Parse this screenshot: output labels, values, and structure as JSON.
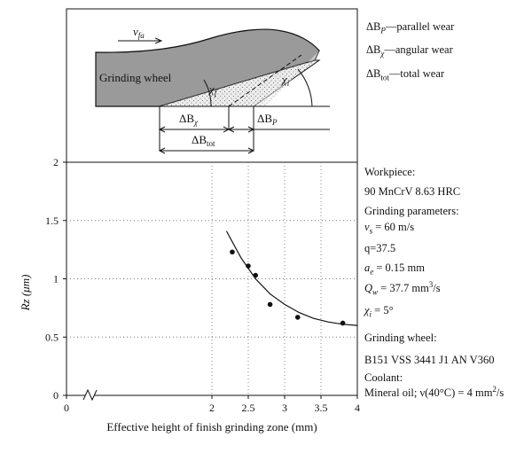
{
  "legend": {
    "parallel": {
      "sym": "ΔB",
      "sub": "P",
      "text": "—parallel wear"
    },
    "angular": {
      "sym": "ΔB",
      "sub": "χ",
      "text": "—angular wear"
    },
    "total": {
      "sym": "ΔB",
      "sub": "tot",
      "text": "—total wear"
    }
  },
  "diagram": {
    "vfa": "v",
    "vfa_sub": "fa",
    "wheel": "Grinding wheel",
    "chi_f": "χ",
    "chi_f_sub": "f",
    "chi_i": "χ",
    "chi_i_sub": "i",
    "db_chi": "ΔB",
    "db_chi_sub": "χ",
    "db_p": "ΔB",
    "db_p_sub": "P",
    "db_tot": "ΔB",
    "db_tot_sub": "tot"
  },
  "params": {
    "workpiece_title": "Workpiece:",
    "workpiece": "90 MnCrV 8.63 HRC",
    "grinding_title": "Grinding parameters:",
    "vs_sym": "v",
    "vs_sub": "s",
    "vs_val": " = 60 m/s",
    "q": "q=37.5",
    "ae_sym": "a",
    "ae_sub": "e",
    "ae_val": " = 0.15  mm",
    "qw_sym": "Q",
    "qw_sub": "w",
    "qw_val": " = 37.7 mm",
    "qw_sup": "3",
    "qw_unit": "/s",
    "chi_sym": "χ",
    "chi_sub": "i",
    "chi_val": " = 5°",
    "wheel_title": "Grinding wheel:",
    "wheel": "B151 VSS 3441 J1 AN V360",
    "coolant_title": "Coolant:",
    "coolant": "Mineral oil; ν(40°C) = 4 mm",
    "coolant_sup": "2",
    "coolant_unit": "/s"
  },
  "chart_data": {
    "type": "scatter",
    "xlabel": "Effective height of finish grinding zone (mm)",
    "ylabel": "Rz (μm)",
    "xlim": [
      0,
      4
    ],
    "ylim": [
      0,
      2
    ],
    "xticks": [
      "0",
      "2",
      "2.5",
      "3",
      "3.5",
      "4"
    ],
    "xtick_values": [
      0,
      2,
      2.5,
      3,
      3.5,
      4
    ],
    "yticks": [
      "0",
      "0.5",
      "1",
      "1.5",
      "2"
    ],
    "ytick_values": [
      0,
      0.5,
      1,
      1.5,
      2
    ],
    "axis_break": true,
    "grid": "dotted",
    "points": [
      {
        "x": 2.28,
        "y": 1.23
      },
      {
        "x": 2.5,
        "y": 1.11
      },
      {
        "x": 2.6,
        "y": 1.03
      },
      {
        "x": 2.8,
        "y": 0.78
      },
      {
        "x": 3.18,
        "y": 0.67
      },
      {
        "x": 3.8,
        "y": 0.62
      }
    ],
    "trend": [
      {
        "x": 2.2,
        "y": 1.41
      },
      {
        "x": 2.4,
        "y": 1.18
      },
      {
        "x": 2.6,
        "y": 1.0
      },
      {
        "x": 2.8,
        "y": 0.87
      },
      {
        "x": 3.0,
        "y": 0.78
      },
      {
        "x": 3.2,
        "y": 0.71
      },
      {
        "x": 3.4,
        "y": 0.66
      },
      {
        "x": 3.6,
        "y": 0.63
      },
      {
        "x": 3.8,
        "y": 0.61
      },
      {
        "x": 4.0,
        "y": 0.6
      }
    ]
  }
}
